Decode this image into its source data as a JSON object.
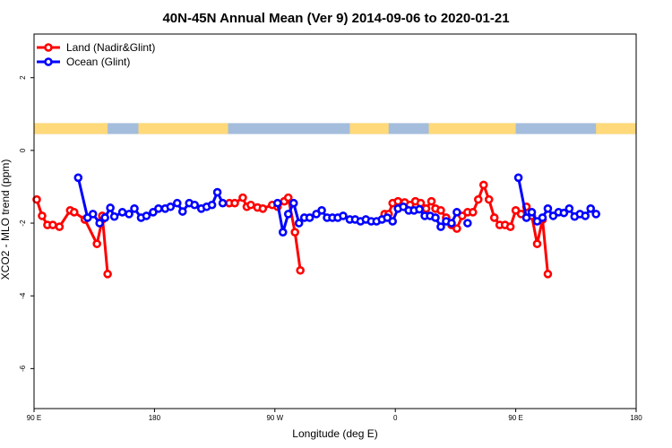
{
  "chart_data": {
    "type": "line",
    "title": "40N-45N Annual Mean (Ver 9)   2014-09-06 to 2020-01-21",
    "xlabel": "Longitude (deg E)",
    "ylabel": "XCO2 - MLO trend (ppm)",
    "xlim": [
      90,
      540
    ],
    "ylim": [
      -7.1,
      3.2
    ],
    "x_ticks": [
      {
        "value": 90,
        "label": "90 E"
      },
      {
        "value": 180,
        "label": "180"
      },
      {
        "value": 270,
        "label": "90 W"
      },
      {
        "value": 360,
        "label": "0"
      },
      {
        "value": 450,
        "label": "90 E"
      },
      {
        "value": 540,
        "label": "180"
      }
    ],
    "y_ticks": [
      {
        "value": 2,
        "label": "2"
      },
      {
        "value": 0,
        "label": "0"
      },
      {
        "value": -2,
        "label": "-2"
      },
      {
        "value": -4,
        "label": "-4"
      },
      {
        "value": -6,
        "label": "-6"
      }
    ],
    "legend_position": "top-left",
    "land_mask_band": {
      "y_range": [
        0.45,
        0.75
      ],
      "land_color": "#ffd97a",
      "ocean_color": "#a4bddc",
      "land_spans": [
        [
          90,
          145
        ],
        [
          168,
          235
        ],
        [
          326,
          355
        ],
        [
          385,
          450
        ],
        [
          510,
          540
        ]
      ]
    },
    "series": [
      {
        "name": "Land (Nadir&Glint)",
        "color": "#ff0000",
        "segments": [
          [
            [
              92,
              -1.35
            ],
            [
              96,
              -1.8
            ],
            [
              100,
              -2.05
            ],
            [
              104,
              -2.05
            ],
            [
              109,
              -2.1
            ],
            [
              117,
              -1.65
            ],
            [
              120,
              -1.7
            ],
            [
              128,
              -1.9
            ],
            [
              128,
              -1.9
            ],
            [
              137,
              -2.57
            ],
            [
              141,
              -1.9
            ]
          ],
          [
            [
              141,
              -1.8
            ],
            [
              145,
              -3.4
            ]
          ],
          [
            [
              236,
              -1.45
            ],
            [
              240,
              -1.45
            ],
            [
              246,
              -1.3
            ],
            [
              249,
              -1.55
            ],
            [
              252,
              -1.5
            ],
            [
              257,
              -1.57
            ],
            [
              261,
              -1.6
            ],
            [
              268,
              -1.5
            ],
            [
              272,
              -1.55
            ],
            [
              277,
              -1.4
            ],
            [
              280,
              -1.3
            ],
            [
              285,
              -2.25
            ],
            [
              289,
              -3.3
            ]
          ],
          [
            [
              352,
              -1.75
            ],
            [
              355,
              -1.75
            ],
            [
              358,
              -1.45
            ],
            [
              362,
              -1.4
            ],
            [
              367,
              -1.43
            ],
            [
              371,
              -1.5
            ],
            [
              375,
              -1.4
            ],
            [
              379,
              -1.45
            ],
            [
              383,
              -1.6
            ],
            [
              387,
              -1.4
            ],
            [
              390,
              -1.6
            ],
            [
              394,
              -1.65
            ],
            [
              398,
              -1.85
            ],
            [
              402,
              -2.05
            ],
            [
              406,
              -2.15
            ],
            [
              410,
              -1.8
            ],
            [
              414,
              -1.7
            ],
            [
              418,
              -1.7
            ],
            [
              422,
              -1.35
            ],
            [
              426,
              -0.95
            ],
            [
              430,
              -1.35
            ],
            [
              434,
              -1.85
            ],
            [
              438,
              -2.05
            ],
            [
              442,
              -2.05
            ],
            [
              446,
              -2.1
            ],
            [
              450,
              -1.65
            ],
            [
              454,
              -1.75
            ],
            [
              458,
              -1.55
            ],
            [
              462,
              -1.8
            ]
          ],
          [
            [
              462,
              -1.8
            ],
            [
              466,
              -2.57
            ],
            [
              470,
              -1.9
            ]
          ],
          [
            [
              470,
              -1.9
            ],
            [
              474,
              -3.4
            ]
          ]
        ]
      },
      {
        "name": "Ocean (Glint)",
        "color": "#0000ff",
        "segments": [
          [
            [
              123,
              -0.75
            ],
            [
              130,
              -1.85
            ],
            [
              134,
              -1.75
            ],
            [
              139,
              -2.0
            ],
            [
              143,
              -1.85
            ],
            [
              147,
              -1.58
            ],
            [
              150,
              -1.82
            ],
            [
              156,
              -1.7
            ],
            [
              161,
              -1.75
            ],
            [
              165,
              -1.6
            ],
            [
              170,
              -1.85
            ],
            [
              174,
              -1.8
            ],
            [
              179,
              -1.7
            ],
            [
              183,
              -1.6
            ],
            [
              188,
              -1.6
            ],
            [
              192,
              -1.55
            ],
            [
              197,
              -1.45
            ],
            [
              201,
              -1.68
            ],
            [
              206,
              -1.45
            ],
            [
              210,
              -1.5
            ],
            [
              215,
              -1.6
            ],
            [
              219,
              -1.55
            ],
            [
              223,
              -1.5
            ],
            [
              227,
              -1.15
            ],
            [
              231,
              -1.45
            ]
          ],
          [
            [
              272,
              -1.45
            ],
            [
              276,
              -2.25
            ],
            [
              280,
              -1.75
            ],
            [
              284,
              -1.45
            ],
            [
              288,
              -2.0
            ],
            [
              292,
              -1.85
            ],
            [
              296,
              -1.85
            ],
            [
              301,
              -1.75
            ],
            [
              305,
              -1.65
            ],
            [
              309,
              -1.85
            ],
            [
              313,
              -1.85
            ],
            [
              317,
              -1.85
            ],
            [
              321,
              -1.8
            ],
            [
              326,
              -1.9
            ],
            [
              330,
              -1.9
            ],
            [
              334,
              -1.95
            ],
            [
              338,
              -1.9
            ],
            [
              342,
              -1.95
            ],
            [
              346,
              -1.95
            ],
            [
              350,
              -1.9
            ],
            [
              354,
              -1.85
            ],
            [
              358,
              -1.95
            ],
            [
              362,
              -1.6
            ],
            [
              366,
              -1.55
            ],
            [
              370,
              -1.65
            ],
            [
              374,
              -1.65
            ],
            [
              378,
              -1.62
            ],
            [
              382,
              -1.8
            ],
            [
              386,
              -1.8
            ],
            [
              390,
              -1.85
            ],
            [
              394,
              -2.1
            ],
            [
              398,
              -1.95
            ],
            [
              402,
              -2.0
            ],
            [
              406,
              -1.7
            ]
          ],
          [
            [
              414,
              -2.0
            ]
          ],
          [
            [
              452,
              -0.75
            ],
            [
              458,
              -1.85
            ],
            [
              462,
              -1.7
            ],
            [
              466,
              -1.95
            ],
            [
              470,
              -1.85
            ],
            [
              474,
              -1.6
            ],
            [
              478,
              -1.8
            ],
            [
              482,
              -1.7
            ],
            [
              486,
              -1.72
            ],
            [
              490,
              -1.6
            ],
            [
              494,
              -1.82
            ],
            [
              498,
              -1.75
            ],
            [
              502,
              -1.8
            ],
            [
              506,
              -1.6
            ],
            [
              510,
              -1.75
            ]
          ]
        ]
      }
    ]
  }
}
